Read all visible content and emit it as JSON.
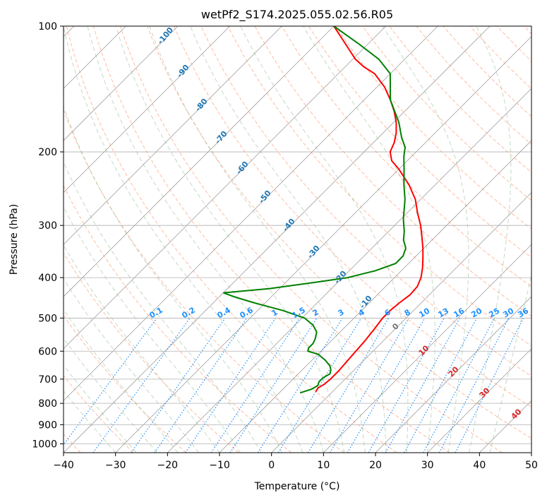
{
  "chart_data": {
    "type": "line",
    "title": "wetPf2_S174.2025.055.02.56.R05",
    "xlabel": "Temperature (°C)",
    "ylabel": "Pressure (hPa)",
    "xlim": [
      -40,
      50
    ],
    "ylim": [
      1050,
      100
    ],
    "y_scale": "log",
    "x_ticks": [
      -40,
      -30,
      -20,
      -10,
      0,
      10,
      20,
      30,
      40,
      50
    ],
    "y_ticks": [
      1000,
      900,
      800,
      700,
      600,
      500,
      400,
      300,
      200,
      100
    ],
    "grid": true,
    "skew": "skew-T log-P",
    "series": [
      {
        "color": "#ff0000",
        "role": "temperature",
        "points": [
          {
            "p": 750,
            "t": -3.2
          },
          {
            "p": 735,
            "t": -3.5
          },
          {
            "p": 720,
            "t": -3.0
          },
          {
            "p": 700,
            "t": -2.8
          },
          {
            "p": 670,
            "t": -2.8
          },
          {
            "p": 640,
            "t": -3.0
          },
          {
            "p": 600,
            "t": -3.3
          },
          {
            "p": 570,
            "t": -3.5
          },
          {
            "p": 530,
            "t": -4.0
          },
          {
            "p": 500,
            "t": -4.5
          },
          {
            "p": 480,
            "t": -4.5
          },
          {
            "p": 460,
            "t": -4.2
          },
          {
            "p": 440,
            "t": -3.7
          },
          {
            "p": 420,
            "t": -3.9
          },
          {
            "p": 400,
            "t": -4.9
          },
          {
            "p": 380,
            "t": -6.4
          },
          {
            "p": 360,
            "t": -8.2
          },
          {
            "p": 340,
            "t": -10.2
          },
          {
            "p": 320,
            "t": -12.5
          },
          {
            "p": 300,
            "t": -15.0
          },
          {
            "p": 280,
            "t": -18.0
          },
          {
            "p": 260,
            "t": -21.0
          },
          {
            "p": 240,
            "t": -25.0
          },
          {
            "p": 220,
            "t": -30.0
          },
          {
            "p": 210,
            "t": -33.0
          },
          {
            "p": 200,
            "t": -35.0
          },
          {
            "p": 190,
            "t": -36.0
          },
          {
            "p": 180,
            "t": -37.5
          },
          {
            "p": 170,
            "t": -39.5
          },
          {
            "p": 160,
            "t": -42.0
          },
          {
            "p": 150,
            "t": -45.0
          },
          {
            "p": 140,
            "t": -48.5
          },
          {
            "p": 130,
            "t": -53.0
          },
          {
            "p": 125,
            "t": -56.5
          },
          {
            "p": 120,
            "t": -59.5
          },
          {
            "p": 110,
            "t": -64.5
          },
          {
            "p": 100,
            "t": -70.0
          }
        ]
      },
      {
        "color": "#008000",
        "role": "dewpoint",
        "points": [
          {
            "p": 755,
            "t": -6.0
          },
          {
            "p": 740,
            "t": -4.5
          },
          {
            "p": 725,
            "t": -4.0
          },
          {
            "p": 710,
            "t": -4.5
          },
          {
            "p": 695,
            "t": -4.5
          },
          {
            "p": 680,
            "t": -3.9
          },
          {
            "p": 665,
            "t": -4.5
          },
          {
            "p": 650,
            "t": -5.5
          },
          {
            "p": 630,
            "t": -7.5
          },
          {
            "p": 610,
            "t": -10.0
          },
          {
            "p": 600,
            "t": -12.5
          },
          {
            "p": 590,
            "t": -13.0
          },
          {
            "p": 575,
            "t": -13.0
          },
          {
            "p": 560,
            "t": -13.5
          },
          {
            "p": 540,
            "t": -14.5
          },
          {
            "p": 520,
            "t": -16.5
          },
          {
            "p": 500,
            "t": -19.5
          },
          {
            "p": 480,
            "t": -25.0
          },
          {
            "p": 460,
            "t": -32.0
          },
          {
            "p": 445,
            "t": -37.0
          },
          {
            "p": 435,
            "t": -40.0
          },
          {
            "p": 425,
            "t": -32.0
          },
          {
            "p": 410,
            "t": -24.0
          },
          {
            "p": 400,
            "t": -19.0
          },
          {
            "p": 385,
            "t": -15.0
          },
          {
            "p": 370,
            "t": -12.5
          },
          {
            "p": 355,
            "t": -12.5
          },
          {
            "p": 340,
            "t": -13.5
          },
          {
            "p": 325,
            "t": -15.5
          },
          {
            "p": 310,
            "t": -17.0
          },
          {
            "p": 290,
            "t": -19.5
          },
          {
            "p": 260,
            "t": -23.0
          },
          {
            "p": 240,
            "t": -26.0
          },
          {
            "p": 220,
            "t": -29.0
          },
          {
            "p": 205,
            "t": -31.5
          },
          {
            "p": 195,
            "t": -33.0
          },
          {
            "p": 185,
            "t": -35.5
          },
          {
            "p": 170,
            "t": -39.0
          },
          {
            "p": 150,
            "t": -45.0
          },
          {
            "p": 130,
            "t": -50.0
          },
          {
            "p": 120,
            "t": -55.0
          },
          {
            "p": 110,
            "t": -62.0
          },
          {
            "p": 100,
            "t": -70.0
          }
        ]
      }
    ],
    "dry_adiabat_labels": [
      "-100",
      "-90",
      "-80",
      "-70",
      "-60",
      "-50",
      "-40",
      "-30",
      "-20",
      "-10"
    ],
    "moist_adiabat_labels": [
      "0",
      "10",
      "20",
      "30",
      "40"
    ],
    "mixing_ratio_labels": [
      "0.1",
      "0.2",
      "0.4",
      "0.6",
      "1",
      "1.5",
      "2",
      "3",
      "4",
      "6",
      "8",
      "10",
      "13",
      "16",
      "20",
      "25",
      "30",
      "36"
    ],
    "colors": {
      "temperature": "#ff0000",
      "dewpoint": "#008000",
      "dry_adiabats": "#ffa07a",
      "moist_adiabats": "#8fbc8f",
      "mixing_ratio": "#1e90ff",
      "isotherms": "#a0a0a0",
      "dry_label": "#1f77b4",
      "moist_label": "#d62728"
    }
  }
}
